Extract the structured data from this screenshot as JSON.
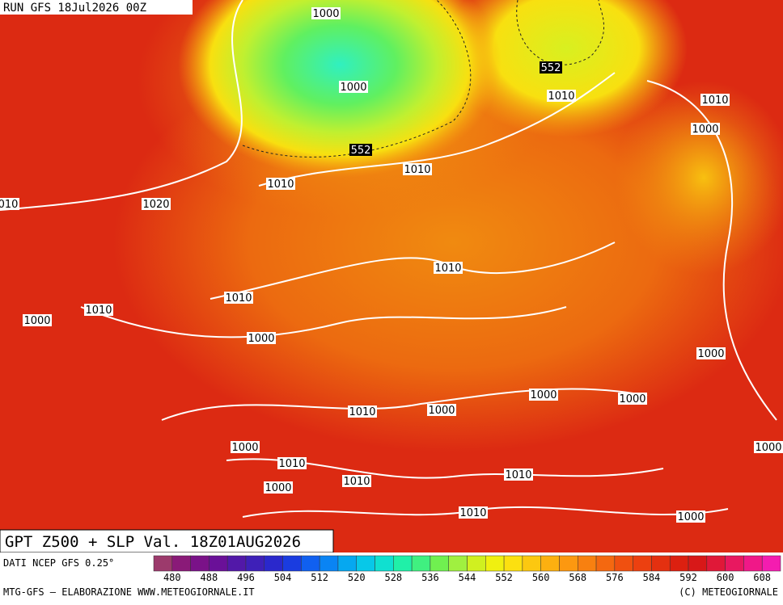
{
  "header": {
    "run": "RUN GFS 18Jul2026 00Z"
  },
  "title": "GPT Z500 + SLP Val. 18Z01AUG2026",
  "source": "DATI NCEP GFS 0.25°",
  "credit_left": "MTG-GFS — ELABORAZIONE WWW.METEOGIORNALE.IT",
  "credit_right": "(C) METEOGIORNALE",
  "colorbar": {
    "ticks": [
      480,
      488,
      496,
      504,
      512,
      520,
      528,
      536,
      544,
      552,
      560,
      568,
      576,
      584,
      592,
      600,
      608
    ],
    "colors": [
      "#9c3a6c",
      "#8a1a78",
      "#7a1288",
      "#6a1098",
      "#5218a8",
      "#3e20b8",
      "#2a28cc",
      "#1a3ce0",
      "#1060f0",
      "#0a84f4",
      "#06a8f0",
      "#08c8e8",
      "#10e0d0",
      "#20f0a8",
      "#40f080",
      "#70f050",
      "#a0f040",
      "#d0f020",
      "#f0f010",
      "#fce010",
      "#fcc810",
      "#fcb010",
      "#fc9810",
      "#f88010",
      "#f46810",
      "#f05010",
      "#ec4010",
      "#e43010",
      "#dc2010",
      "#d81818",
      "#e01838",
      "#e81860",
      "#f01888",
      "#f41cb0"
    ]
  },
  "isobar_labels": [
    "1000",
    "552",
    "1010",
    "1010",
    "1000",
    "1000",
    "552",
    "1010",
    "1010",
    "1020",
    "010",
    "1010",
    "1010",
    "1010",
    "1000",
    "1000",
    "1000",
    "1000",
    "1000",
    "1010",
    "1000",
    "1000",
    "1000",
    "1010",
    "1010",
    "1010",
    "1000",
    "1010",
    "1000"
  ]
}
